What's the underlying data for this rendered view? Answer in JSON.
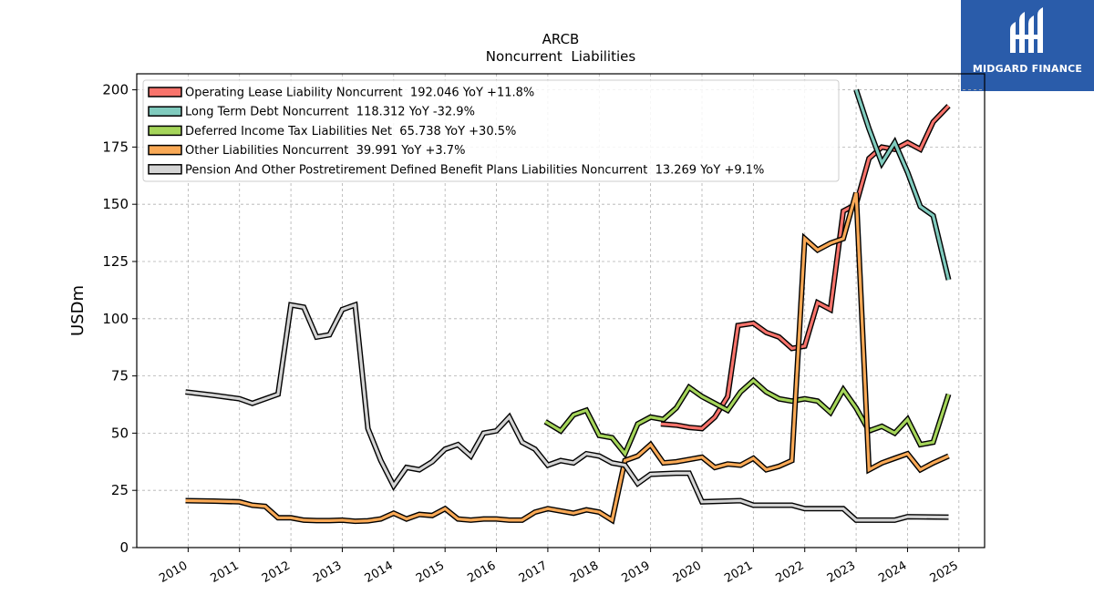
{
  "brand": {
    "name": "MIDGARD FINANCE",
    "bg_color": "#2a5caa"
  },
  "chart_data": {
    "type": "line",
    "title": "ARCB",
    "subtitle": "Noncurrent  Liabilities",
    "ylabel": "USDm",
    "xlabel": "",
    "ylim": [
      0,
      207
    ],
    "xlim": [
      2009.0,
      2025.5
    ],
    "yticks": [
      0,
      25,
      50,
      75,
      100,
      125,
      150,
      175,
      200
    ],
    "xticks": [
      2010,
      2011,
      2012,
      2013,
      2014,
      2015,
      2016,
      2017,
      2018,
      2019,
      2020,
      2021,
      2022,
      2023,
      2024,
      2025
    ],
    "grid": true,
    "legend_position": "top-left",
    "series": [
      {
        "name": "Operating Lease Liability Noncurrent",
        "legend": "Operating Lease Liability Noncurrent  192.046 YoY +11.8%",
        "color": "#f8736b",
        "points": [
          [
            2019.2,
            54
          ],
          [
            2019.5,
            53.5
          ],
          [
            2019.75,
            52.5
          ],
          [
            2020.0,
            52
          ],
          [
            2020.25,
            57
          ],
          [
            2020.5,
            66
          ],
          [
            2020.7,
            97
          ],
          [
            2021.0,
            98
          ],
          [
            2021.25,
            94
          ],
          [
            2021.5,
            92
          ],
          [
            2021.75,
            87
          ],
          [
            2022.0,
            88
          ],
          [
            2022.25,
            107
          ],
          [
            2022.5,
            104
          ],
          [
            2022.75,
            147
          ],
          [
            2023.0,
            150
          ],
          [
            2023.25,
            170
          ],
          [
            2023.5,
            175
          ],
          [
            2023.75,
            174
          ],
          [
            2024.0,
            177
          ],
          [
            2024.25,
            174
          ],
          [
            2024.5,
            186
          ],
          [
            2024.8,
            193
          ]
        ]
      },
      {
        "name": "Long Term Debt Noncurrent",
        "legend": "Long Term Debt Noncurrent  118.312 YoY -32.9%",
        "color": "#80cbbe",
        "points": [
          [
            2023.0,
            200
          ],
          [
            2023.25,
            183
          ],
          [
            2023.5,
            168
          ],
          [
            2023.75,
            177
          ],
          [
            2024.0,
            164
          ],
          [
            2024.25,
            149
          ],
          [
            2024.5,
            145
          ],
          [
            2024.8,
            117
          ]
        ]
      },
      {
        "name": "Deferred Income Tax Liabilities Net",
        "legend": "Deferred Income Tax Liabilities Net  65.738 YoY +30.5%",
        "color": "#a5d55a",
        "points": [
          [
            2016.95,
            55
          ],
          [
            2017.25,
            51
          ],
          [
            2017.5,
            58
          ],
          [
            2017.75,
            60
          ],
          [
            2018.0,
            49
          ],
          [
            2018.25,
            48
          ],
          [
            2018.5,
            41
          ],
          [
            2018.75,
            54
          ],
          [
            2019.0,
            57
          ],
          [
            2019.25,
            56
          ],
          [
            2019.5,
            61
          ],
          [
            2019.75,
            70
          ],
          [
            2020.0,
            66
          ],
          [
            2020.25,
            63
          ],
          [
            2020.5,
            60
          ],
          [
            2020.75,
            68
          ],
          [
            2021.0,
            73
          ],
          [
            2021.25,
            68
          ],
          [
            2021.5,
            65
          ],
          [
            2021.75,
            64
          ],
          [
            2022.0,
            65
          ],
          [
            2022.25,
            64
          ],
          [
            2022.5,
            59
          ],
          [
            2022.75,
            69
          ],
          [
            2023.0,
            61
          ],
          [
            2023.25,
            51
          ],
          [
            2023.5,
            53
          ],
          [
            2023.75,
            50
          ],
          [
            2024.0,
            56
          ],
          [
            2024.25,
            45
          ],
          [
            2024.5,
            46
          ],
          [
            2024.8,
            67
          ]
        ]
      },
      {
        "name": "Other Liabilities Noncurrent",
        "legend": "Other Liabilities Noncurrent  39.991 YoY +3.7%",
        "color": "#f9a956",
        "points": [
          [
            2009.95,
            20.5
          ],
          [
            2010.5,
            20.3
          ],
          [
            2011.0,
            20
          ],
          [
            2011.25,
            18.5
          ],
          [
            2011.5,
            18
          ],
          [
            2011.75,
            13
          ],
          [
            2012.0,
            13
          ],
          [
            2012.25,
            12
          ],
          [
            2012.5,
            11.8
          ],
          [
            2012.75,
            11.8
          ],
          [
            2013.0,
            12
          ],
          [
            2013.25,
            11.5
          ],
          [
            2013.5,
            11.7
          ],
          [
            2013.75,
            12.5
          ],
          [
            2014.0,
            15
          ],
          [
            2014.25,
            12.5
          ],
          [
            2014.5,
            14.5
          ],
          [
            2014.75,
            14
          ],
          [
            2015.0,
            17
          ],
          [
            2015.25,
            12.5
          ],
          [
            2015.5,
            12
          ],
          [
            2015.75,
            12.5
          ],
          [
            2016.0,
            12.5
          ],
          [
            2016.25,
            12
          ],
          [
            2016.5,
            12
          ],
          [
            2016.75,
            15.5
          ],
          [
            2017.0,
            17
          ],
          [
            2017.25,
            16
          ],
          [
            2017.5,
            15
          ],
          [
            2017.75,
            16.5
          ],
          [
            2018.0,
            15.5
          ],
          [
            2018.25,
            12
          ],
          [
            2018.5,
            38
          ],
          [
            2018.75,
            40
          ],
          [
            2019.0,
            45
          ],
          [
            2019.25,
            37
          ],
          [
            2019.5,
            37.5
          ],
          [
            2019.75,
            38.5
          ],
          [
            2020.0,
            39.5
          ],
          [
            2020.25,
            35
          ],
          [
            2020.5,
            36.5
          ],
          [
            2020.75,
            36
          ],
          [
            2021.0,
            39
          ],
          [
            2021.25,
            34
          ],
          [
            2021.5,
            35.5
          ],
          [
            2021.75,
            38
          ],
          [
            2022.0,
            135
          ],
          [
            2022.25,
            130
          ],
          [
            2022.5,
            133
          ],
          [
            2022.75,
            135
          ],
          [
            2023.0,
            155
          ],
          [
            2023.25,
            34
          ],
          [
            2023.5,
            37
          ],
          [
            2023.75,
            39
          ],
          [
            2024.0,
            41
          ],
          [
            2024.25,
            34
          ],
          [
            2024.5,
            37
          ],
          [
            2024.8,
            40
          ]
        ]
      },
      {
        "name": "Pension And Other Postretirement Defined Benefit Plans Liabilities Noncurrent",
        "legend": "Pension And Other Postretirement Defined Benefit Plans Liabilities Noncurrent  13.269 YoY +9.1%",
        "color": "#d4d4d4",
        "points": [
          [
            2009.95,
            68
          ],
          [
            2010.5,
            66.5
          ],
          [
            2011.0,
            65
          ],
          [
            2011.25,
            63
          ],
          [
            2011.75,
            67
          ],
          [
            2012.0,
            106
          ],
          [
            2012.25,
            105
          ],
          [
            2012.5,
            92
          ],
          [
            2012.75,
            93
          ],
          [
            2013.0,
            104
          ],
          [
            2013.25,
            106
          ],
          [
            2013.5,
            52
          ],
          [
            2013.75,
            38
          ],
          [
            2014.0,
            27
          ],
          [
            2014.25,
            35
          ],
          [
            2014.5,
            34
          ],
          [
            2014.75,
            37.5
          ],
          [
            2015.0,
            43
          ],
          [
            2015.25,
            45
          ],
          [
            2015.5,
            40
          ],
          [
            2015.75,
            50
          ],
          [
            2016.0,
            51
          ],
          [
            2016.25,
            57
          ],
          [
            2016.5,
            46
          ],
          [
            2016.75,
            43
          ],
          [
            2017.0,
            36
          ],
          [
            2017.25,
            38
          ],
          [
            2017.5,
            37
          ],
          [
            2017.75,
            41
          ],
          [
            2018.0,
            40
          ],
          [
            2018.25,
            37
          ],
          [
            2018.5,
            36
          ],
          [
            2018.75,
            28
          ],
          [
            2019.0,
            32
          ],
          [
            2019.5,
            32.5
          ],
          [
            2019.75,
            32.5
          ],
          [
            2020.0,
            20
          ],
          [
            2020.75,
            20.5
          ],
          [
            2021.0,
            18.5
          ],
          [
            2021.75,
            18.5
          ],
          [
            2022.0,
            17
          ],
          [
            2022.75,
            17
          ],
          [
            2023.0,
            12
          ],
          [
            2023.75,
            12
          ],
          [
            2024.0,
            13.5
          ],
          [
            2024.8,
            13.3
          ]
        ]
      }
    ]
  }
}
